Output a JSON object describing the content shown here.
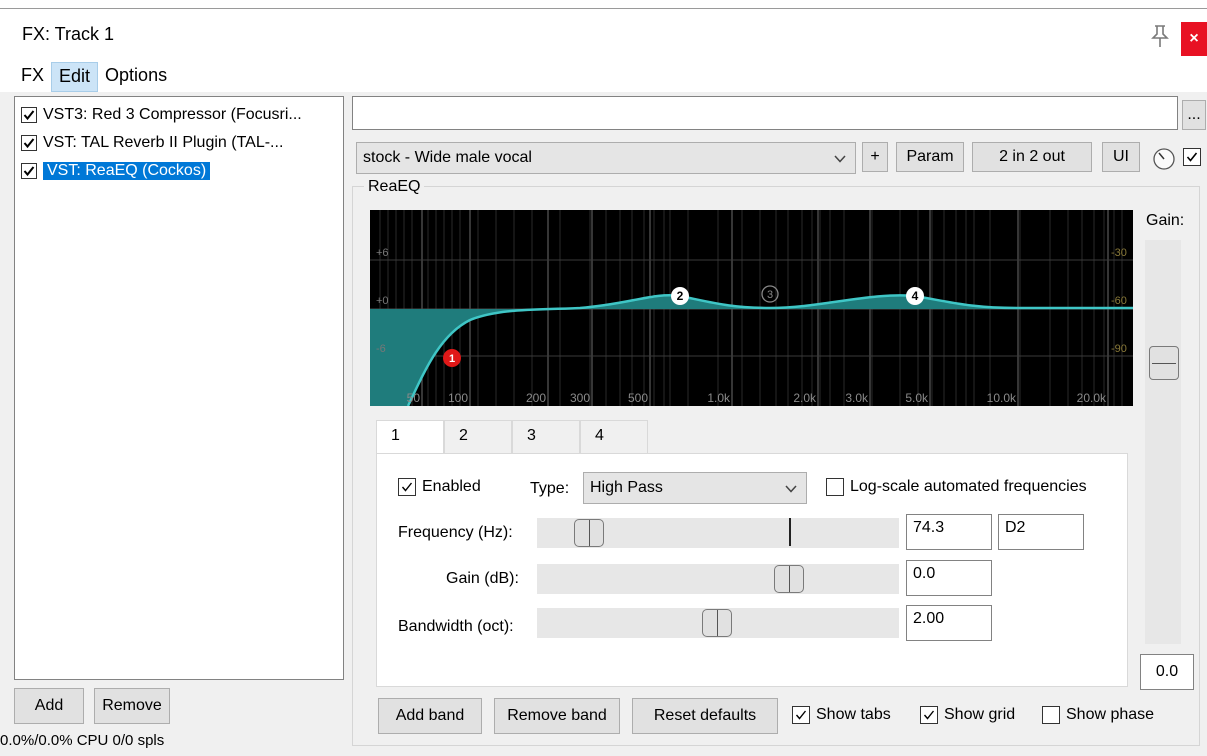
{
  "window": {
    "title": "FX: Track 1",
    "close_label": "×"
  },
  "menu": [
    "FX",
    "Edit",
    "Options"
  ],
  "fx_list": [
    {
      "label": "VST3: Red 3 Compressor (Focusri...",
      "checked": true,
      "selected": false
    },
    {
      "label": "VST: TAL Reverb II Plugin (TAL-...",
      "checked": true,
      "selected": false
    },
    {
      "label": "VST: ReaEQ (Cockos)",
      "checked": true,
      "selected": true
    }
  ],
  "left_buttons": {
    "add": "Add",
    "remove": "Remove"
  },
  "status": "0.0%/0.0% CPU 0/0 spls",
  "preset": {
    "input_value": "",
    "dots": "...",
    "selected": "stock - Wide male vocal"
  },
  "toolbar": {
    "plus": "+",
    "param": "Param",
    "io": "2 in 2 out",
    "ui": "UI"
  },
  "plugin_group": "ReaEQ",
  "eq_graph": {
    "db_labels": [
      "+6",
      "+0",
      "-6"
    ],
    "right_labels": [
      "-30",
      "-60",
      "-90"
    ],
    "freq_labels": [
      "50",
      "100",
      "200",
      "300",
      "500",
      "1.0k",
      "2.0k",
      "3.0k",
      "5.0k",
      "10.0k",
      "20.0k"
    ],
    "band_nodes": [
      "1",
      "2",
      "3",
      "4"
    ],
    "curve_color": "#3fc6c6",
    "fill_color": "#1f7c7c",
    "node1_color": "#e01818"
  },
  "gain": {
    "title": "Gain:",
    "value": "0.0"
  },
  "tabs": [
    "1",
    "2",
    "3",
    "4"
  ],
  "band": {
    "enabled_label": "Enabled",
    "type_label": "Type:",
    "type_value": "High Pass",
    "log_label": "Log-scale automated frequencies",
    "freq_label": "Frequency (Hz):",
    "freq_value": "74.3",
    "note_value": "D2",
    "gain_label": "Gain (dB):",
    "gain_value": "0.0",
    "bw_label": "Bandwidth (oct):",
    "bw_value": "2.00"
  },
  "bottom": {
    "add_band": "Add band",
    "remove_band": "Remove band",
    "reset": "Reset defaults",
    "show_tabs": "Show tabs",
    "show_grid": "Show grid",
    "show_phase": "Show phase"
  }
}
